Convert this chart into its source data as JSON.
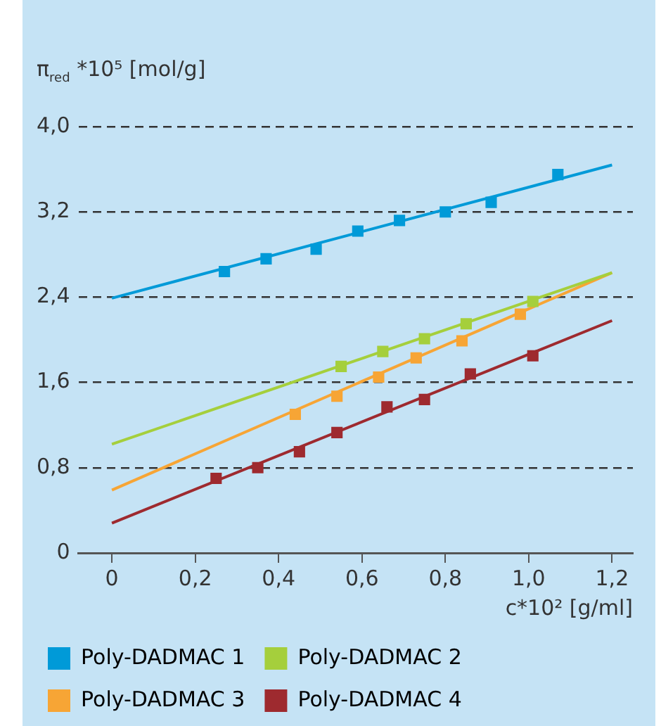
{
  "chart_data": {
    "type": "scatter",
    "xlabel": "c*10² [g/ml]",
    "ylabel": "π$_{red}$ *10⁵ [mol/g]",
    "xlim": [
      -0.08,
      1.25
    ],
    "xticks": [
      0,
      {
        "value": 0.2,
        "label": "0,2"
      },
      {
        "value": 0.4,
        "label": "0,4"
      },
      {
        "value": 0.6,
        "label": "0,6"
      },
      {
        "value": 0.8,
        "label": "0,8"
      },
      {
        "value": 1.0,
        "label": "1,0"
      },
      {
        "value": 1.2,
        "label": "1,2"
      }
    ],
    "ylim": [
      0,
      4.0
    ],
    "yticks": [
      0,
      {
        "value": 0.8,
        "label": "0,8"
      },
      {
        "value": 1.6,
        "label": "1,6"
      },
      {
        "value": 2.4,
        "label": "2,4"
      },
      {
        "value": 3.2,
        "label": "3,2"
      },
      {
        "value": 4.0,
        "label": "4,0"
      }
    ],
    "grid": "y",
    "legend": "bottom",
    "marker": "square",
    "series": [
      {
        "name": "Poly-DADMAC 1",
        "color": "#009ad8",
        "x": [
          0.27,
          0.37,
          0.49,
          0.59,
          0.69,
          0.8,
          0.91,
          1.07
        ],
        "values": [
          2.64,
          2.76,
          2.85,
          3.02,
          3.12,
          3.2,
          3.29,
          3.55
        ]
      },
      {
        "name": "Poly-DADMAC 2",
        "color": "#a5cf3c",
        "x": [
          0.55,
          0.65,
          0.75,
          0.85,
          1.01
        ],
        "values": [
          1.75,
          1.89,
          2.01,
          2.15,
          2.36
        ]
      },
      {
        "name": "Poly-DADMAC 3",
        "color": "#f7a535",
        "x": [
          0.44,
          0.54,
          0.64,
          0.73,
          0.84,
          0.98
        ],
        "values": [
          1.3,
          1.47,
          1.65,
          1.83,
          1.99,
          2.24
        ]
      },
      {
        "name": "Poly-DADMAC 4",
        "color": "#9e2a2f",
        "x": [
          0.25,
          0.35,
          0.45,
          0.54,
          0.66,
          0.75,
          0.86,
          1.01
        ],
        "values": [
          0.7,
          0.8,
          0.95,
          1.13,
          1.37,
          1.44,
          1.68,
          1.85
        ]
      },
      {
        "type": "line",
        "color": "#009ad8",
        "marker": "none",
        "line_style": "solid",
        "x": [
          0,
          1.2
        ],
        "values": [
          2.39,
          3.64
        ]
      },
      {
        "type": "line",
        "color": "#a5cf3c",
        "marker": "none",
        "line_style": "solid",
        "x": [
          0,
          1.2
        ],
        "values": [
          1.02,
          2.63
        ]
      },
      {
        "type": "line",
        "color": "#f7a535",
        "marker": "none",
        "line_style": "solid",
        "x": [
          0,
          1.2
        ],
        "values": [
          0.59,
          2.63
        ]
      },
      {
        "type": "line",
        "color": "#9e2a2f",
        "marker": "none",
        "line_style": "solid",
        "x": [
          0,
          1.2
        ],
        "values": [
          0.28,
          2.18
        ]
      }
    ]
  }
}
